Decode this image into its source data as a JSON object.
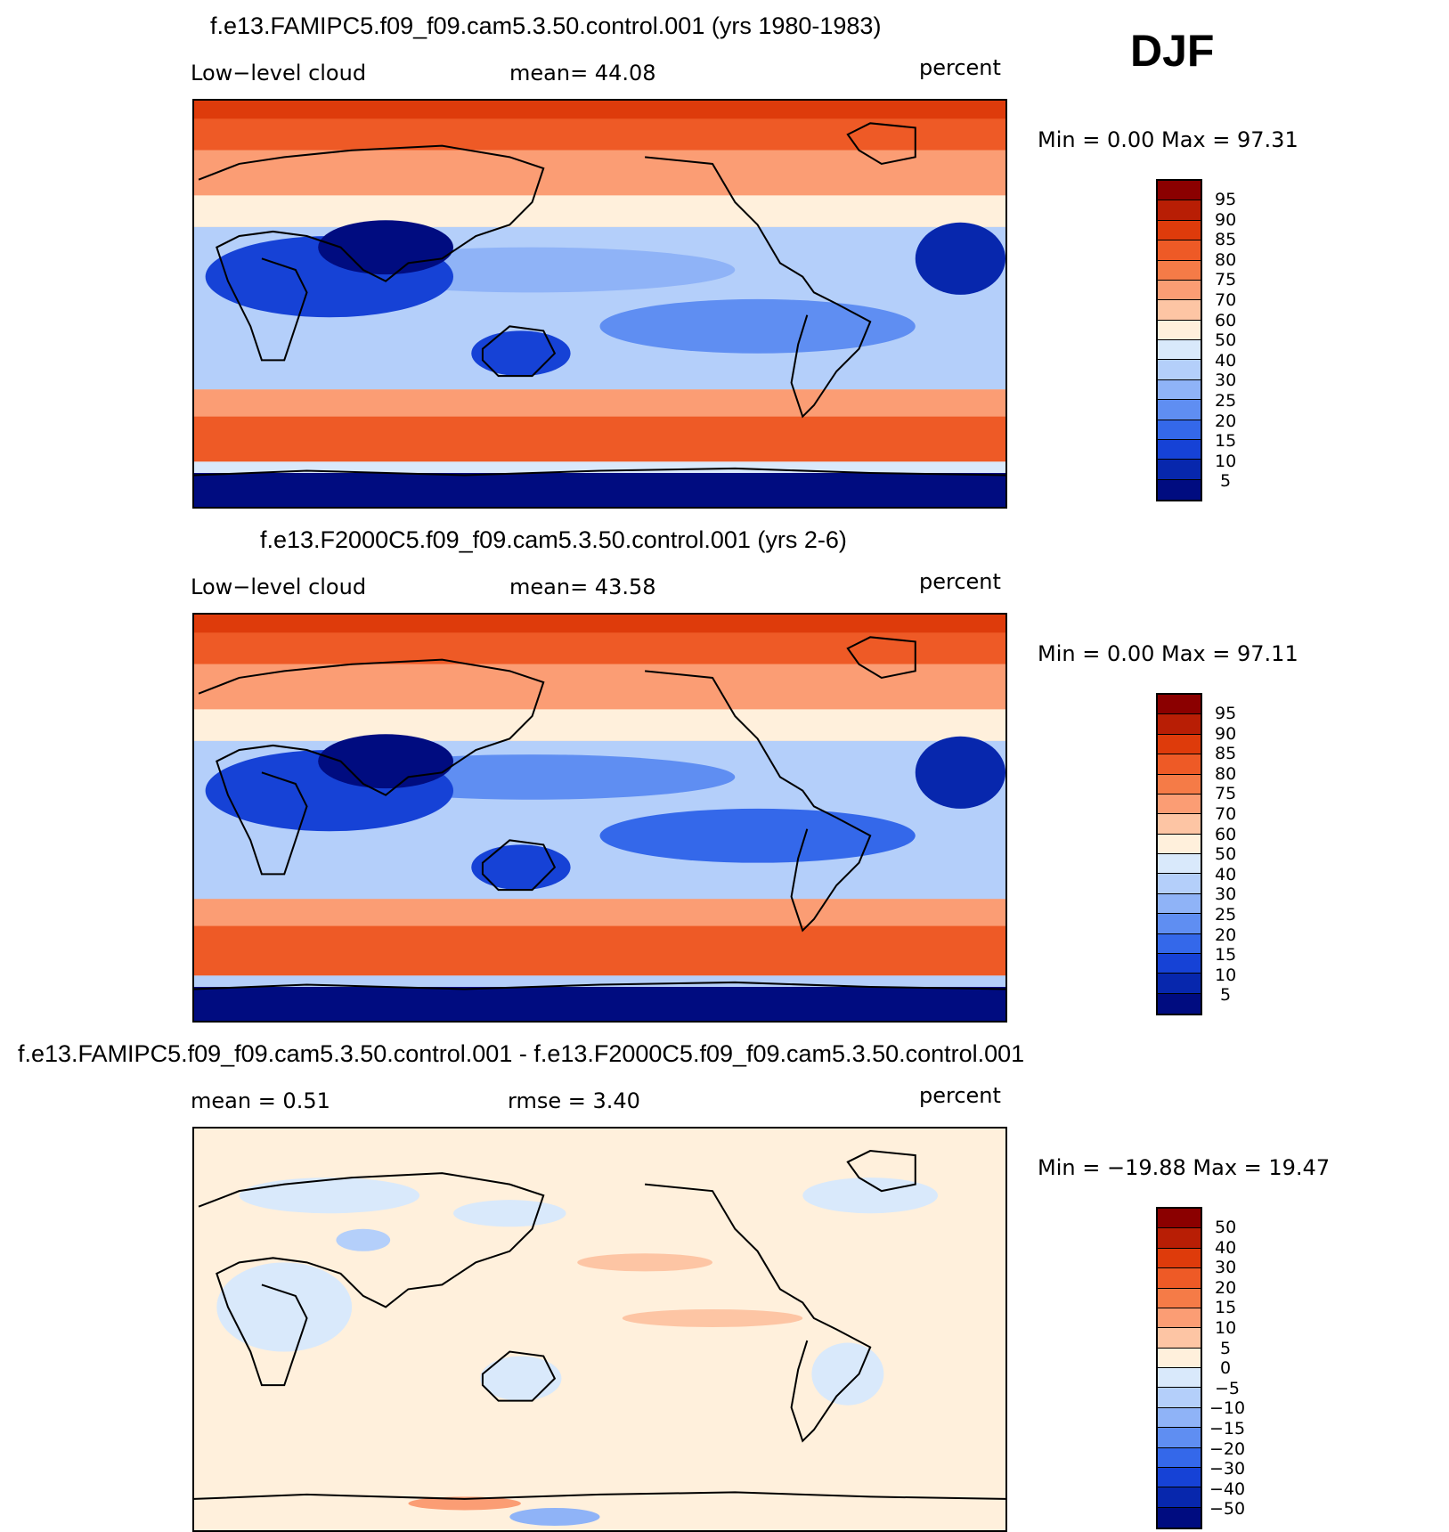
{
  "season": "DJF",
  "panels": [
    {
      "title": "f.e13.FAMIPC5.f09_f09.cam5.3.50.control.001 (yrs 1980-1983)",
      "left_label": "Low−level cloud",
      "center_label": "mean=   44.08",
      "units": "percent",
      "minmax": "Min =    0.00  Max =   97.31",
      "type": "field"
    },
    {
      "title": "f.e13.F2000C5.f09_f09.cam5.3.50.control.001 (yrs 2-6)",
      "left_label": "Low−level cloud",
      "center_label": "mean=   43.58",
      "units": "percent",
      "minmax": "Min =    0.00  Max =   97.11",
      "type": "field"
    },
    {
      "title": "f.e13.FAMIPC5.f09_f09.cam5.3.50.control.001 - f.e13.F2000C5.f09_f09.cam5.3.50.control.001",
      "left_label": "mean =    0.51",
      "center_label": "rmse =    3.40",
      "units": "percent",
      "minmax": "Min = −19.88  Max =   19.47",
      "type": "diff"
    }
  ],
  "colorbars": {
    "field": {
      "labels": [
        "95",
        "90",
        "85",
        "80",
        "75",
        "70",
        "60",
        "50",
        "40",
        "30",
        "25",
        "20",
        "15",
        "10",
        "5"
      ],
      "colors": [
        "#8b0000",
        "#b81e05",
        "#de3b0b",
        "#ee5a26",
        "#f57b47",
        "#fb9d74",
        "#fdc5a4",
        "#fff0dc",
        "#d9e9fb",
        "#b4cffa",
        "#8fb3f7",
        "#5f8ef2",
        "#3468ea",
        "#1642d6",
        "#0727ad",
        "#000c80"
      ]
    },
    "diff": {
      "labels": [
        "50",
        "40",
        "30",
        "20",
        "15",
        "10",
        "5",
        "0",
        "−5",
        "−10",
        "−15",
        "−20",
        "−30",
        "−40",
        "−50"
      ],
      "colors": [
        "#8b0000",
        "#b81e05",
        "#de3b0b",
        "#ee5a26",
        "#f57b47",
        "#fb9d74",
        "#fdc5a4",
        "#fff0dc",
        "#d9e9fb",
        "#b4cffa",
        "#8fb3f7",
        "#5f8ef2",
        "#3468ea",
        "#1642d6",
        "#0727ad",
        "#000c80"
      ]
    }
  }
}
